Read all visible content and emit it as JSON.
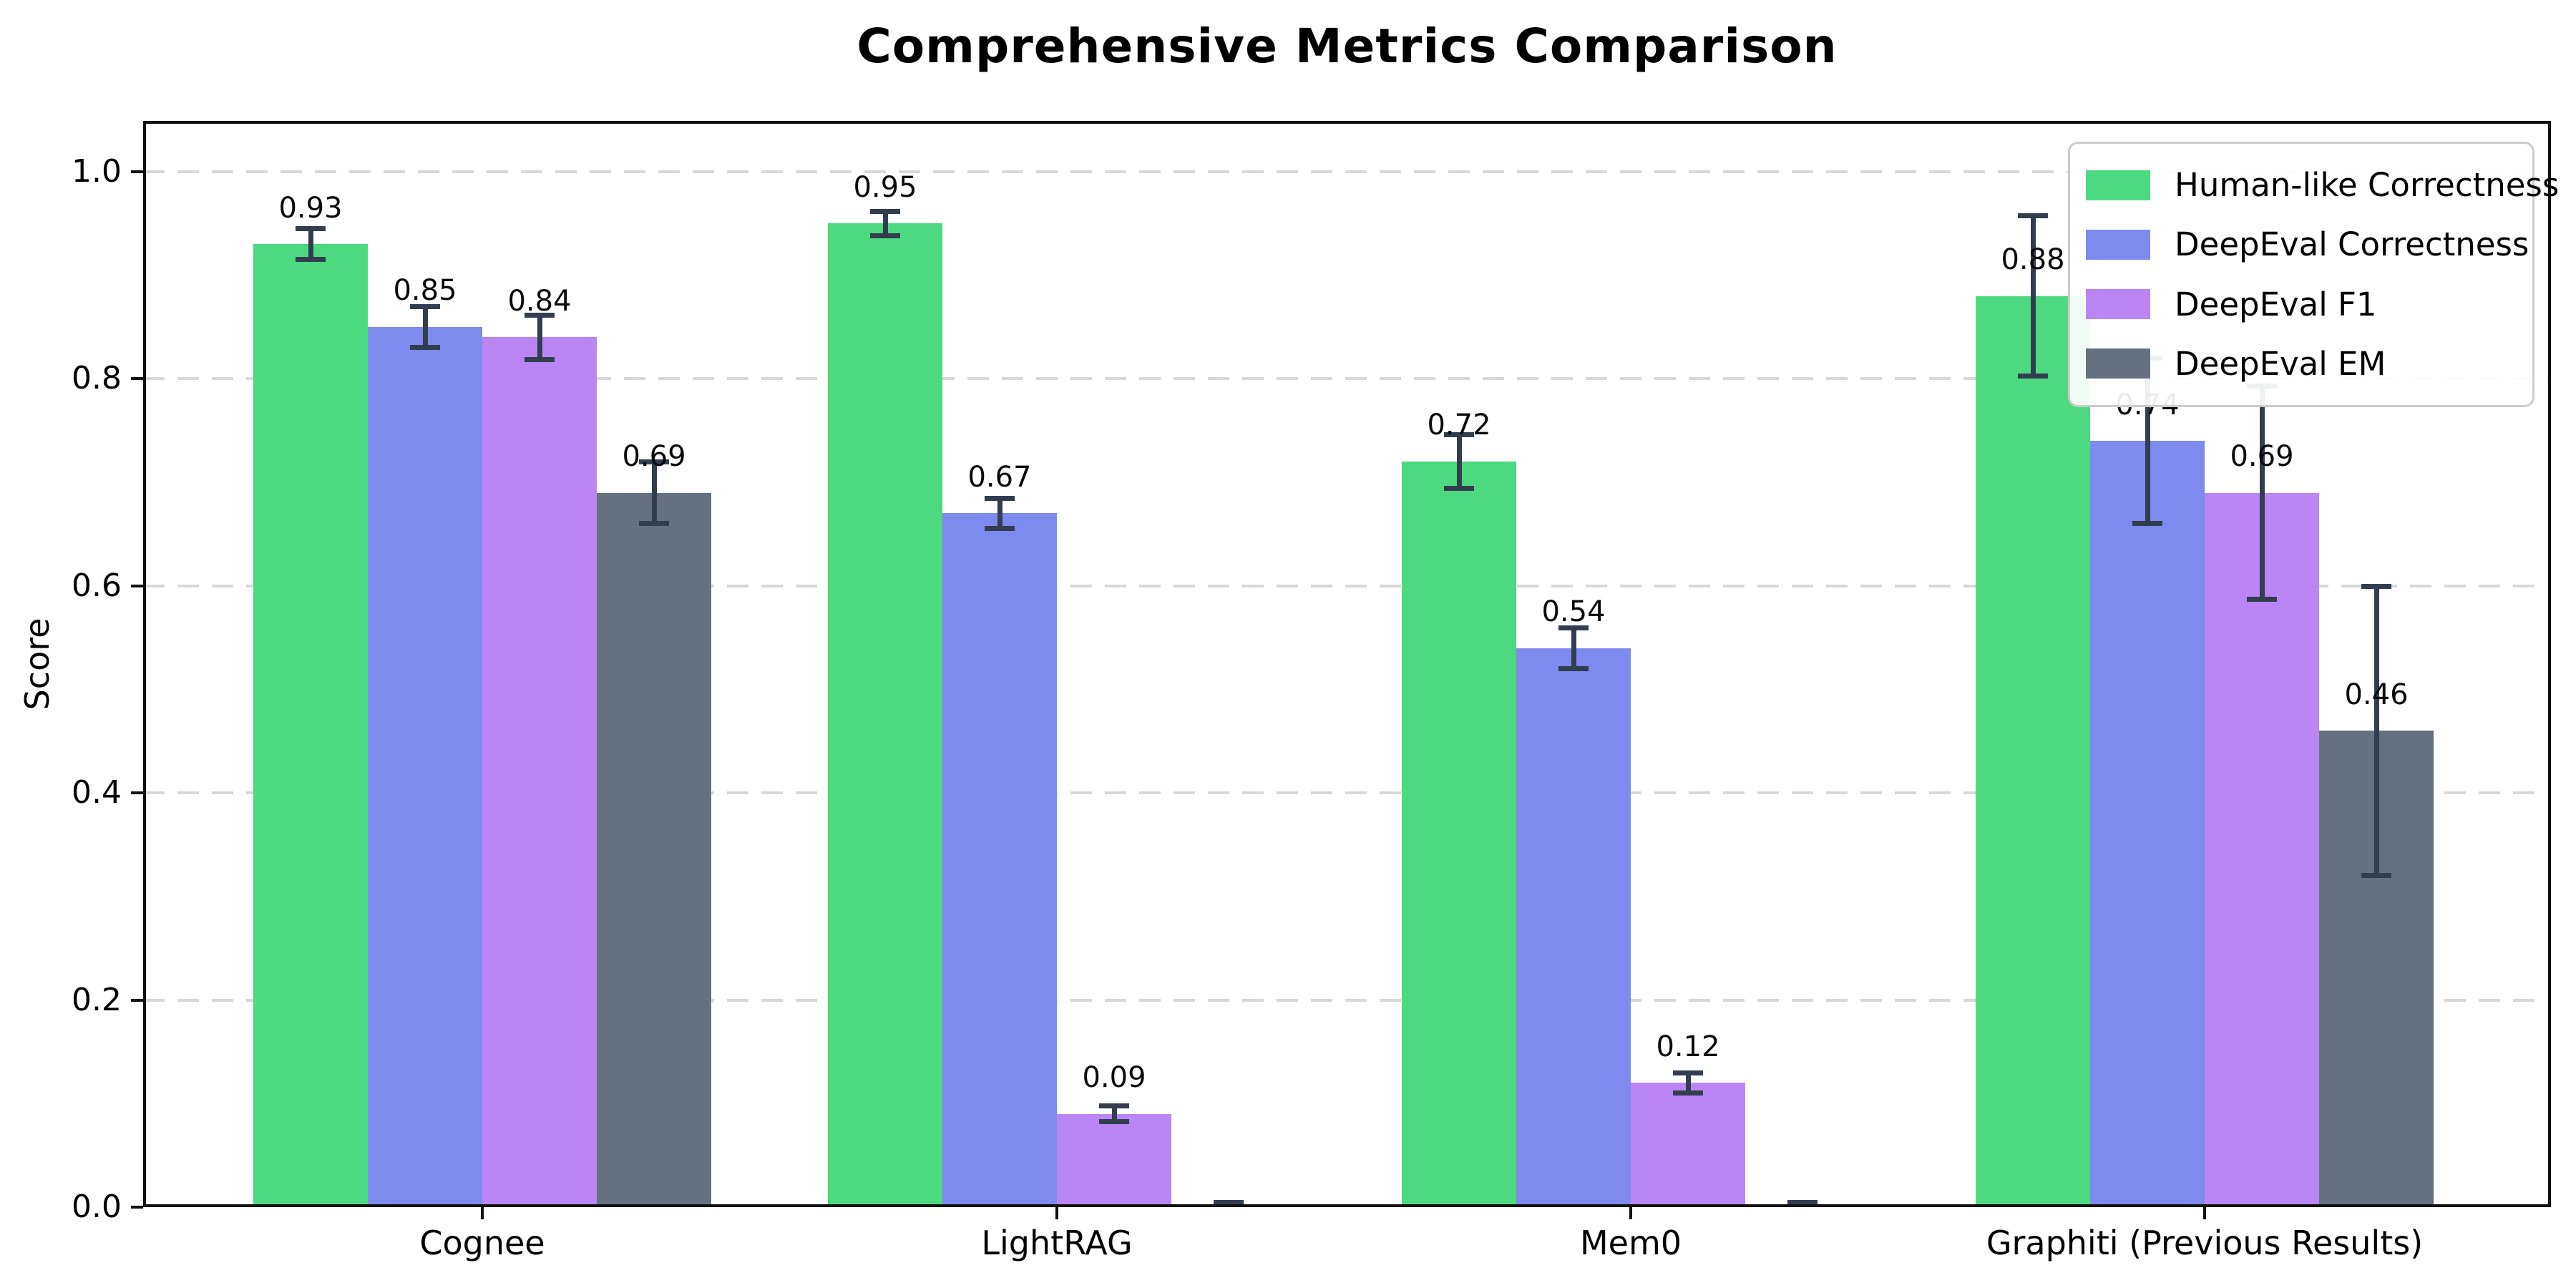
{
  "chart_data": {
    "type": "bar",
    "title": "Comprehensive Metrics Comparison",
    "xlabel": "",
    "ylabel": "Score",
    "categories": [
      "Cognee",
      "LightRAG",
      "Mem0",
      "Graphiti (Previous Results)"
    ],
    "series": [
      {
        "name": "Human-like Correctness",
        "color": "#4cd980",
        "values": [
          0.93,
          0.95,
          0.72,
          0.88
        ],
        "errors": [
          0.015,
          0.012,
          0.026,
          0.078
        ],
        "labels": [
          "0.93",
          "0.95",
          "0.72",
          "0.88"
        ]
      },
      {
        "name": "DeepEval Correctness",
        "color": "#7e8aee",
        "values": [
          0.85,
          0.67,
          0.54,
          0.74
        ],
        "errors": [
          0.02,
          0.015,
          0.02,
          0.08
        ],
        "labels": [
          "0.85",
          "0.67",
          "0.54",
          "0.74"
        ]
      },
      {
        "name": "DeepEval F1",
        "color": "#b986f4",
        "values": [
          0.84,
          0.09,
          0.12,
          0.69
        ],
        "errors": [
          0.022,
          0.008,
          0.01,
          0.103
        ],
        "labels": [
          "0.84",
          "0.09",
          "0.12",
          "0.69"
        ]
      },
      {
        "name": "DeepEval EM",
        "color": "#66717f",
        "values": [
          0.69,
          0.0,
          0.0,
          0.46
        ],
        "errors": [
          0.03,
          0.005,
          0.005,
          0.14
        ],
        "labels": [
          "0.69",
          null,
          null,
          "0.46"
        ]
      }
    ],
    "yticks": [
      {
        "value": 0.0,
        "label": "0.0"
      },
      {
        "value": 0.2,
        "label": "0.2"
      },
      {
        "value": 0.4,
        "label": "0.4"
      },
      {
        "value": 0.6,
        "label": "0.6"
      },
      {
        "value": 0.8,
        "label": "0.8"
      },
      {
        "value": 1.0,
        "label": "1.0"
      }
    ],
    "ylim": [
      0,
      1.049
    ],
    "grid": {
      "axis": "y",
      "style": "dashed",
      "color": "#d8d8d8"
    },
    "legend": {
      "position": "upper-right",
      "entries": [
        "Human-like Correctness",
        "DeepEval Correctness",
        "DeepEval F1",
        "DeepEval EM"
      ]
    },
    "error_bars": true,
    "value_label_offset": 0.035
  },
  "colors": {
    "error_bar": "#323e50",
    "axis": "#0f0f0f",
    "grid": "#d8d8d8",
    "legend_border": "#cccccc",
    "background": "#ffffff"
  }
}
